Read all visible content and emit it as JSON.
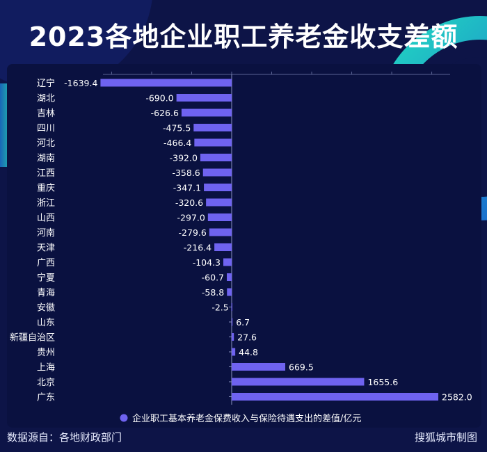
{
  "title": "2023各地企业职工养老金收支差额",
  "colors": {
    "background": "#0d1447",
    "panel": "#0a1140",
    "bar": "#6f63f0",
    "text": "#ffffff",
    "accent_teal": "#1fd3c0"
  },
  "footer": {
    "source": "数据源自：各地财政部门",
    "credit": "搜狐城市制图"
  },
  "chart_data": {
    "type": "bar",
    "orientation": "horizontal",
    "categories": [
      "辽宁",
      "湖北",
      "吉林",
      "四川",
      "河北",
      "湖南",
      "江西",
      "重庆",
      "浙江",
      "山西",
      "河南",
      "天津",
      "广西",
      "宁夏",
      "青海",
      "安徽",
      "山东",
      "新疆自治区",
      "贵州",
      "上海",
      "北京",
      "广东"
    ],
    "series": [
      {
        "name": "企业职工基本养老金保费收入与保险待遇支出的差值/亿元",
        "values": [
          -1639.4,
          -690.0,
          -626.6,
          -475.5,
          -466.4,
          -392.0,
          -358.6,
          -347.1,
          -320.6,
          -297.0,
          -279.6,
          -216.4,
          -104.3,
          -60.7,
          -58.8,
          -2.5,
          6.7,
          27.6,
          44.8,
          669.5,
          1655.6,
          2582.0
        ],
        "labels": [
          "-1639.4",
          "-690.0",
          "-626.6",
          "-475.5",
          "-466.4",
          "-392.0",
          "-358.6",
          "-347.1",
          "-320.6",
          "-297.0",
          "-279.6",
          "-216.4",
          "-104.3",
          "-60.7",
          "-58.8",
          "-2.5",
          "6.7",
          "27.6",
          "44.8",
          "669.5",
          "1655.6",
          "2582.0"
        ]
      }
    ],
    "xlim": [
      -1700,
      2700
    ],
    "legend_position": "bottom-center",
    "grid": false
  }
}
